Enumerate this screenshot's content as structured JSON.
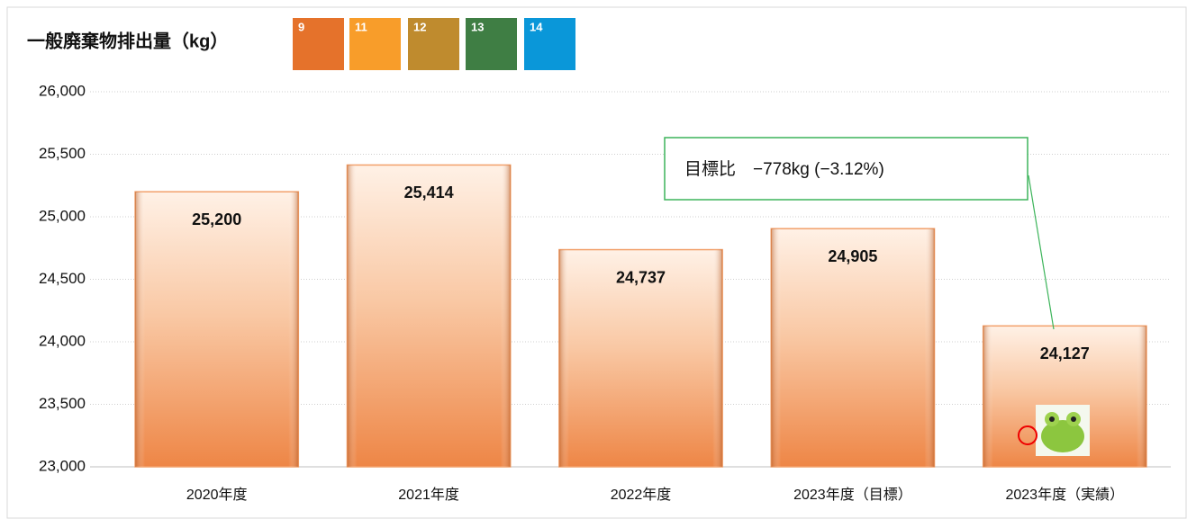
{
  "sdg_icons": [
    "9",
    "11",
    "12",
    "13",
    "14"
  ],
  "chart_data": {
    "type": "bar",
    "title": "一般廃棄物排出量（kg）",
    "annotation": "目標比　−778kg (−3.12%)",
    "categories": [
      "2020年度",
      "2021年度",
      "2022年度",
      "2023年度（目標）",
      "2023年度（実績）"
    ],
    "values": [
      25200,
      25414,
      24737,
      24905,
      24127
    ],
    "value_labels": [
      "25,200",
      "25,414",
      "24,737",
      "24,905",
      "24,127"
    ],
    "color": "#f2a06a",
    "ylim": [
      23000,
      26000
    ],
    "yticks": [
      {
        "value": 23000,
        "label": "23,000"
      },
      {
        "value": 23500,
        "label": "23,500"
      },
      {
        "value": 24000,
        "label": "24,000"
      },
      {
        "value": 24500,
        "label": "24,500"
      },
      {
        "value": 25000,
        "label": "25,000"
      },
      {
        "value": 25500,
        "label": "25,500"
      },
      {
        "value": 26000,
        "label": "26,000"
      }
    ],
    "grid": true
  }
}
